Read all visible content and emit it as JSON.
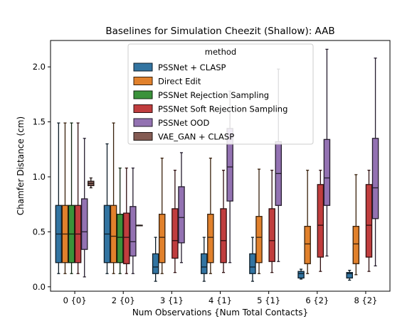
{
  "chart_data": {
    "type": "box",
    "title": "Baselines for Simulation Cheezit (Shallow): AAB",
    "xlabel": "Num Observations {Num Total Contacts}",
    "ylabel": "Chamfer Distance (cm)",
    "ylim": [
      -0.04,
      2.24
    ],
    "yticks": [
      0.0,
      0.5,
      1.0,
      1.5,
      2.0
    ],
    "ytick_labels": [
      "0.0",
      "0.5",
      "1.0",
      "1.5",
      "2.0"
    ],
    "categories": [
      "0 {0}",
      "2 {0}",
      "3 {1}",
      "4 {1}",
      "5 {1}",
      "6 {2}",
      "8 {2}"
    ],
    "legend": {
      "title": "method",
      "placement": "upper center"
    },
    "series": [
      {
        "name": "PSSNet + CLASP",
        "color": "#3274a1",
        "boxes": [
          {
            "whislo": 0.12,
            "q1": 0.22,
            "med": 0.48,
            "q3": 0.74,
            "whishi": 1.49
          },
          {
            "whislo": 0.12,
            "q1": 0.22,
            "med": 0.48,
            "q3": 0.74,
            "whishi": 1.3
          },
          {
            "whislo": 0.05,
            "q1": 0.12,
            "med": 0.18,
            "q3": 0.3,
            "whishi": 0.45
          },
          {
            "whislo": 0.05,
            "q1": 0.12,
            "med": 0.18,
            "q3": 0.3,
            "whishi": 0.45
          },
          {
            "whislo": 0.05,
            "q1": 0.12,
            "med": 0.18,
            "q3": 0.3,
            "whishi": 0.45
          },
          {
            "whislo": 0.07,
            "q1": 0.08,
            "med": 0.12,
            "q3": 0.14,
            "whishi": 0.16
          },
          {
            "whislo": 0.06,
            "q1": 0.08,
            "med": 0.12,
            "q3": 0.13,
            "whishi": 0.15
          }
        ]
      },
      {
        "name": "Direct Edit",
        "color": "#e1812c",
        "boxes": [
          {
            "whislo": 0.12,
            "q1": 0.22,
            "med": 0.48,
            "q3": 0.74,
            "whishi": 1.49
          },
          {
            "whislo": 0.12,
            "q1": 0.22,
            "med": 0.46,
            "q3": 0.74,
            "whishi": 1.49
          },
          {
            "whislo": 0.12,
            "q1": 0.22,
            "med": 0.45,
            "q3": 0.66,
            "whishi": 1.17
          },
          {
            "whislo": 0.12,
            "q1": 0.22,
            "med": 0.45,
            "q3": 0.66,
            "whishi": 1.17
          },
          {
            "whislo": 0.12,
            "q1": 0.22,
            "med": 0.45,
            "q3": 0.64,
            "whishi": 1.07
          },
          {
            "whislo": 0.12,
            "q1": 0.21,
            "med": 0.39,
            "q3": 0.55,
            "whishi": 1.06
          },
          {
            "whislo": 0.11,
            "q1": 0.21,
            "med": 0.39,
            "q3": 0.55,
            "whishi": 1.02
          }
        ]
      },
      {
        "name": "PSSNet Rejection Sampling",
        "color": "#3a923a",
        "boxes": [
          {
            "whislo": 0.12,
            "q1": 0.22,
            "med": 0.48,
            "q3": 0.74,
            "whishi": 1.49
          },
          {
            "whislo": 0.12,
            "q1": 0.22,
            "med": 0.45,
            "q3": 0.66,
            "whishi": 1.08
          },
          null,
          null,
          null,
          null,
          null
        ]
      },
      {
        "name": "PSSNet Soft Rejection Sampling",
        "color": "#c03d3e",
        "boxes": [
          {
            "whislo": 0.12,
            "q1": 0.22,
            "med": 0.48,
            "q3": 0.74,
            "whishi": 1.49
          },
          {
            "whislo": 0.12,
            "q1": 0.21,
            "med": 0.45,
            "q3": 0.67,
            "whishi": 1.08
          },
          {
            "whislo": 0.13,
            "q1": 0.26,
            "med": 0.42,
            "q3": 0.71,
            "whishi": 1.06
          },
          {
            "whislo": 0.13,
            "q1": 0.22,
            "med": 0.42,
            "q3": 0.71,
            "whishi": 1.06
          },
          {
            "whislo": 0.13,
            "q1": 0.23,
            "med": 0.42,
            "q3": 0.71,
            "whishi": 1.06
          },
          {
            "whislo": 0.14,
            "q1": 0.27,
            "med": 0.56,
            "q3": 0.93,
            "whishi": 1.06
          },
          {
            "whislo": 0.14,
            "q1": 0.27,
            "med": 0.56,
            "q3": 0.93,
            "whishi": 1.06
          }
        ]
      },
      {
        "name": "PSSNet OOD",
        "color": "#9372b2",
        "boxes": [
          {
            "whislo": 0.09,
            "q1": 0.34,
            "med": 0.5,
            "q3": 0.8,
            "whishi": 1.35
          },
          {
            "whislo": 0.12,
            "q1": 0.28,
            "med": 0.41,
            "q3": 0.73,
            "whishi": 1.08
          },
          {
            "whislo": 0.22,
            "q1": 0.4,
            "med": 0.63,
            "q3": 0.91,
            "whishi": 1.22
          },
          {
            "whislo": 0.22,
            "q1": 0.78,
            "med": 1.09,
            "q3": 1.44,
            "whishi": 1.78
          },
          {
            "whislo": 0.23,
            "q1": 0.74,
            "med": 1.03,
            "q3": 1.32,
            "whishi": 1.98
          },
          {
            "whislo": 0.28,
            "q1": 0.74,
            "med": 0.99,
            "q3": 1.34,
            "whishi": 2.16
          },
          {
            "whislo": 0.19,
            "q1": 0.62,
            "med": 0.9,
            "q3": 1.35,
            "whishi": 2.08
          }
        ]
      },
      {
        "name": "VAE_GAN + CLASP",
        "color": "#845b53",
        "boxes": [
          {
            "whislo": 0.9,
            "q1": 0.92,
            "med": 0.94,
            "q3": 0.96,
            "whishi": 0.99
          },
          {
            "whislo": 0.56,
            "q1": 0.56,
            "med": 0.56,
            "q3": 0.56,
            "whishi": 0.56
          },
          null,
          null,
          null,
          null,
          null
        ]
      }
    ]
  }
}
